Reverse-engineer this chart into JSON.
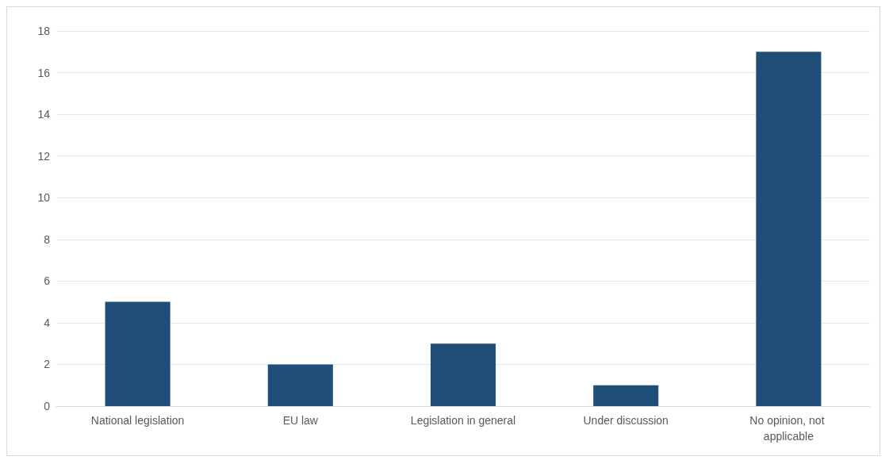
{
  "chart_data": {
    "type": "bar",
    "categories": [
      "National legislation",
      "EU law",
      "Legislation in general",
      "Under discussion",
      "No opinion, not applicable"
    ],
    "values": [
      5,
      2,
      3,
      1,
      17
    ],
    "color": "#1f4e79",
    "ylim": [
      0,
      18
    ],
    "yticks": [
      0,
      2,
      4,
      6,
      8,
      10,
      12,
      14,
      16,
      18
    ],
    "grid": "y"
  }
}
